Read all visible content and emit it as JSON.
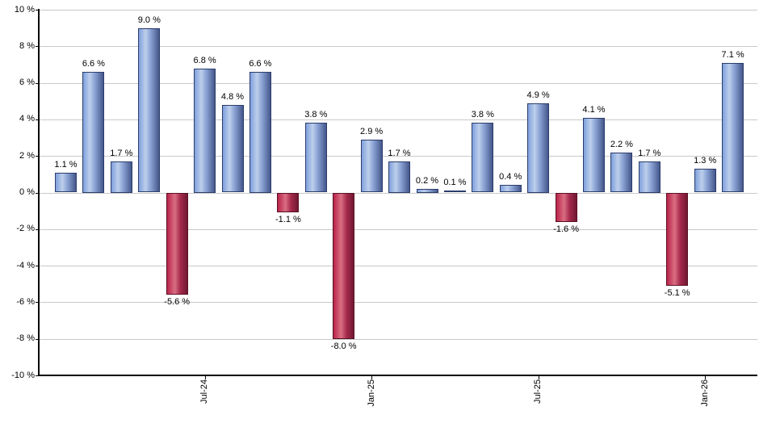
{
  "chart_data": {
    "type": "bar",
    "title": "",
    "xlabel": "",
    "ylabel": "",
    "ylim": [
      -10,
      10
    ],
    "grid": true,
    "legend": "none",
    "y_ticks": [
      "10 %",
      "8 %",
      "6 %",
      "4 %",
      "2 %",
      "0 %",
      "-2 %",
      "-4 %",
      "-6 %",
      "-8 %",
      "-10 %"
    ],
    "y_tick_values": [
      10,
      8,
      6,
      4,
      2,
      0,
      -2,
      -4,
      -6,
      -8,
      -10
    ],
    "values": [
      1.1,
      6.6,
      1.7,
      9.0,
      -5.6,
      6.8,
      4.8,
      6.6,
      -1.1,
      3.8,
      -8.0,
      2.9,
      1.7,
      0.2,
      0.1,
      3.8,
      0.4,
      4.9,
      -1.6,
      4.1,
      2.2,
      1.7,
      -5.1,
      1.3,
      7.1
    ],
    "value_labels": [
      "1.1 %",
      "6.6 %",
      "1.7 %",
      "9.0 %",
      "-5.6 %",
      "6.8 %",
      "4.8 %",
      "6.6 %",
      "-1.1 %",
      "3.8 %",
      "-8.0 %",
      "2.9 %",
      "1.7 %",
      "0.2 %",
      "0.1 %",
      "3.8 %",
      "0.4 %",
      "4.9 %",
      "-1.6 %",
      "4.1 %",
      "2.2 %",
      "1.7 %",
      "-5.1 %",
      "1.3 %",
      "7.1 %"
    ],
    "x_tick_labels": [
      {
        "bar_index": 5,
        "label": "Jul-24"
      },
      {
        "bar_index": 11,
        "label": "Jan-25"
      },
      {
        "bar_index": 17,
        "label": "Jul-25"
      },
      {
        "bar_index": 23,
        "label": "Jan-26"
      }
    ],
    "colors": {
      "positive_bar_edge_left": "#7fa0dd",
      "positive_bar_highlight": "#bdcfeb",
      "positive_bar_mid": "#8aa2d4",
      "positive_bar_edge_right": "#45578b",
      "positive_bar_border": "#2c3d6b",
      "negative_bar_edge_left": "#b82349",
      "negative_bar_highlight": "#da6e82",
      "negative_bar_mid": "#a62b4d",
      "negative_bar_edge_right": "#701831",
      "negative_bar_border": "#5c1126",
      "gridline": "#c9c9c9",
      "axis": "#000000",
      "text": "#000000",
      "background": "#ffffff"
    }
  }
}
